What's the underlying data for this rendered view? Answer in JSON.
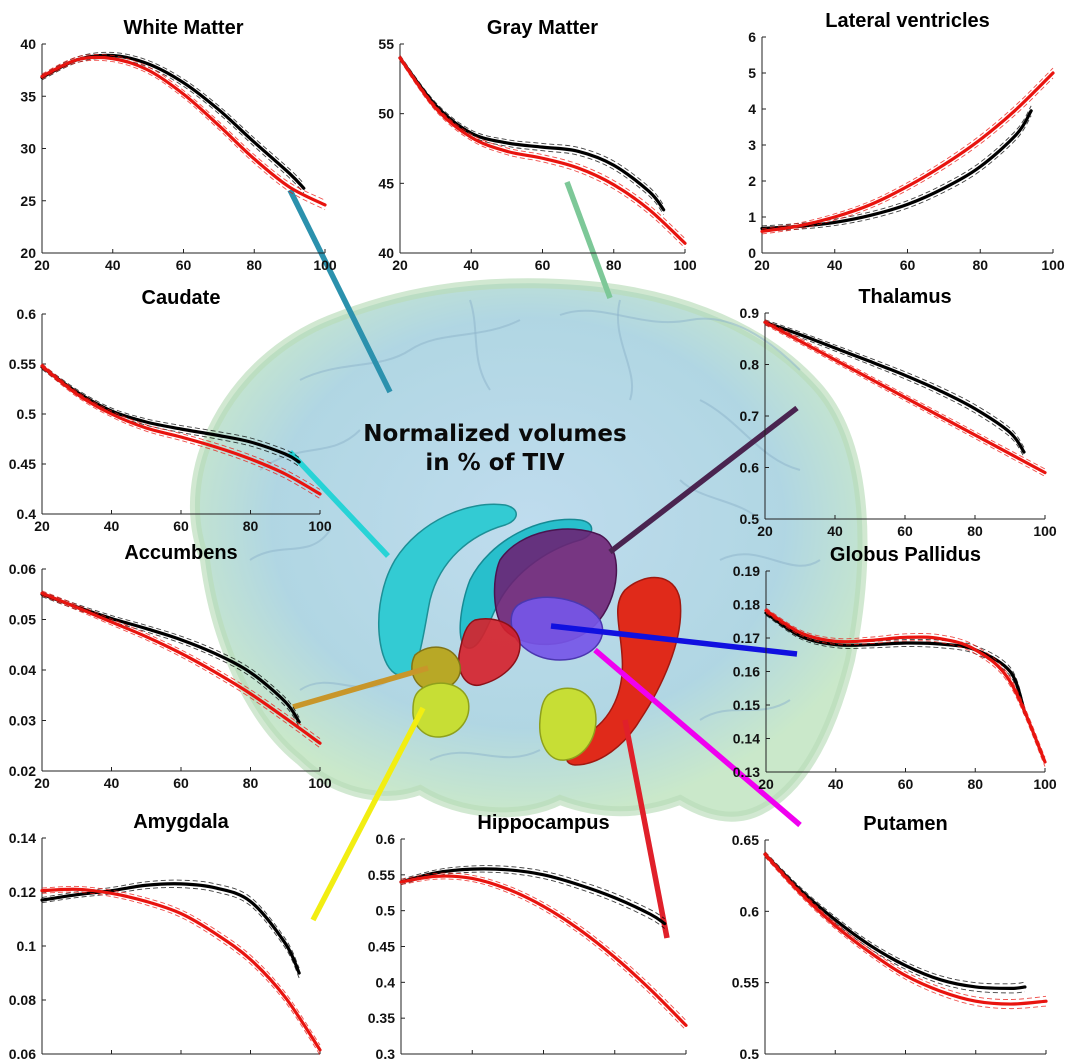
{
  "caption": {
    "line1": "Normalized volumes",
    "line2": "in % of TIV"
  },
  "colors": {
    "series_1": "#000000",
    "series_2": "#e8140f",
    "leader_white_matter": "#2b91ad",
    "leader_gray_matter": "#7dc898",
    "leader_caudate": "#27d3d6",
    "leader_thalamus": "#4a2450",
    "leader_accumbens": "#c8962a",
    "leader_globus_pallidus": "#1010e0",
    "leader_amygdala": "#f2ee12",
    "leader_hippocampus": "#e0202a",
    "leader_putamen": "#f000f0"
  },
  "chart_data": [
    {
      "type": "line",
      "title": "White Matter",
      "xlim": [
        20,
        100
      ],
      "ylim": [
        20,
        40
      ],
      "xticks": [
        "20",
        "40",
        "60",
        "80",
        "100"
      ],
      "yticks": [
        "20",
        "25",
        "30",
        "35",
        "40"
      ],
      "series": [
        {
          "x": [
            20,
            30,
            40,
            50,
            60,
            70,
            80,
            90,
            94
          ],
          "values": [
            36.8,
            38.5,
            38.9,
            38.1,
            36.3,
            33.7,
            30.6,
            27.6,
            26.2
          ]
        },
        {
          "x": [
            20,
            30,
            40,
            50,
            60,
            70,
            80,
            90,
            100
          ],
          "values": [
            36.9,
            38.5,
            38.6,
            37.5,
            35.2,
            32.2,
            29.0,
            26.3,
            24.6
          ]
        }
      ]
    },
    {
      "type": "line",
      "title": "Gray Matter",
      "xlim": [
        20,
        100
      ],
      "ylim": [
        40,
        55
      ],
      "xticks": [
        "20",
        "40",
        "60",
        "80",
        "100"
      ],
      "yticks": [
        "40",
        "45",
        "50",
        "55"
      ],
      "series": [
        {
          "x": [
            20,
            30,
            40,
            50,
            60,
            70,
            80,
            90,
            94
          ],
          "values": [
            54.0,
            50.6,
            48.6,
            47.9,
            47.6,
            47.3,
            46.3,
            44.4,
            43.1
          ]
        },
        {
          "x": [
            20,
            30,
            40,
            50,
            60,
            70,
            80,
            90,
            100
          ],
          "values": [
            54.0,
            50.4,
            48.3,
            47.3,
            46.8,
            46.1,
            44.9,
            43.1,
            40.7
          ]
        }
      ]
    },
    {
      "type": "line",
      "title": "Lateral ventricles",
      "xlim": [
        20,
        100
      ],
      "ylim": [
        0,
        6
      ],
      "xticks": [
        "20",
        "40",
        "60",
        "80",
        "100"
      ],
      "yticks": [
        "0",
        "1",
        "2",
        "3",
        "4",
        "5",
        "6"
      ],
      "series": [
        {
          "x": [
            20,
            30,
            40,
            50,
            60,
            70,
            80,
            90,
            94
          ],
          "values": [
            0.68,
            0.74,
            0.85,
            1.05,
            1.35,
            1.8,
            2.4,
            3.3,
            3.95
          ]
        },
        {
          "x": [
            20,
            30,
            40,
            50,
            60,
            70,
            80,
            90,
            100
          ],
          "values": [
            0.6,
            0.75,
            1.0,
            1.35,
            1.85,
            2.45,
            3.15,
            4.0,
            5.0
          ]
        }
      ]
    },
    {
      "type": "line",
      "title": "Caudate",
      "xlim": [
        20,
        100
      ],
      "ylim": [
        0.4,
        0.6
      ],
      "xticks": [
        "20",
        "40",
        "60",
        "80",
        "100"
      ],
      "yticks": [
        "0.4",
        "0.45",
        "0.5",
        "0.55",
        "0.6"
      ],
      "series": [
        {
          "x": [
            20,
            30,
            40,
            50,
            60,
            70,
            80,
            90,
            94
          ],
          "values": [
            0.547,
            0.522,
            0.503,
            0.492,
            0.485,
            0.479,
            0.472,
            0.46,
            0.452
          ]
        },
        {
          "x": [
            20,
            30,
            40,
            50,
            60,
            70,
            80,
            90,
            100
          ],
          "values": [
            0.548,
            0.52,
            0.5,
            0.486,
            0.477,
            0.467,
            0.455,
            0.44,
            0.42
          ]
        }
      ]
    },
    {
      "type": "line",
      "title": "Thalamus",
      "xlim": [
        20,
        100
      ],
      "ylim": [
        0.5,
        0.9
      ],
      "xticks": [
        "20",
        "40",
        "60",
        "80",
        "100"
      ],
      "yticks": [
        "0.5",
        "0.6",
        "0.7",
        "0.8",
        "0.9"
      ],
      "series": [
        {
          "x": [
            20,
            30,
            40,
            50,
            60,
            70,
            80,
            90,
            94
          ],
          "values": [
            0.882,
            0.858,
            0.832,
            0.806,
            0.779,
            0.749,
            0.714,
            0.668,
            0.63
          ]
        },
        {
          "x": [
            20,
            100
          ],
          "values": [
            0.882,
            0.59
          ]
        }
      ]
    },
    {
      "type": "line",
      "title": "Accumbens",
      "xlim": [
        20,
        100
      ],
      "ylim": [
        0.02,
        0.06
      ],
      "xticks": [
        "20",
        "40",
        "60",
        "80",
        "100"
      ],
      "yticks": [
        "0.02",
        "0.03",
        "0.04",
        "0.05",
        "0.06"
      ],
      "series": [
        {
          "x": [
            20,
            30,
            40,
            50,
            60,
            70,
            80,
            90,
            94
          ],
          "values": [
            0.055,
            0.0525,
            0.0502,
            0.0482,
            0.046,
            0.0432,
            0.0395,
            0.0337,
            0.0297
          ]
        },
        {
          "x": [
            20,
            30,
            40,
            50,
            60,
            70,
            80,
            90,
            100
          ],
          "values": [
            0.0552,
            0.0524,
            0.0495,
            0.0466,
            0.0433,
            0.0395,
            0.0353,
            0.0305,
            0.0255
          ]
        }
      ]
    },
    {
      "type": "line",
      "title": "Globus Pallidus",
      "xlim": [
        20,
        100
      ],
      "ylim": [
        0.13,
        0.19
      ],
      "xticks": [
        "20",
        "40",
        "60",
        "80",
        "100"
      ],
      "yticks": [
        "0.13",
        "0.14",
        "0.15",
        "0.16",
        "0.17",
        "0.18",
        "0.19"
      ],
      "series": [
        {
          "x": [
            20,
            30,
            40,
            50,
            60,
            70,
            80,
            90,
            94
          ],
          "values": [
            0.1775,
            0.1705,
            0.168,
            0.168,
            0.1685,
            0.1682,
            0.1665,
            0.16,
            0.1485
          ]
        },
        {
          "x": [
            20,
            30,
            40,
            50,
            60,
            70,
            80,
            90,
            100
          ],
          "values": [
            0.1782,
            0.1715,
            0.169,
            0.1693,
            0.1702,
            0.1698,
            0.1665,
            0.157,
            0.133
          ]
        }
      ]
    },
    {
      "type": "line",
      "title": "Amygdala",
      "xlim": [
        20,
        100
      ],
      "ylim": [
        0.06,
        0.14
      ],
      "xticks": [
        "20",
        "40",
        "60",
        "80",
        "100"
      ],
      "yticks": [
        "0.06",
        "0.08",
        "0.1",
        "0.12",
        "0.14"
      ],
      "series": [
        {
          "x": [
            20,
            30,
            40,
            50,
            60,
            70,
            80,
            90,
            94
          ],
          "values": [
            0.117,
            0.119,
            0.1205,
            0.1225,
            0.123,
            0.1215,
            0.1165,
            0.101,
            0.09
          ]
        },
        {
          "x": [
            20,
            30,
            40,
            50,
            60,
            70,
            80,
            90,
            100
          ],
          "values": [
            0.1205,
            0.121,
            0.1195,
            0.1165,
            0.112,
            0.1045,
            0.095,
            0.081,
            0.0615
          ]
        }
      ]
    },
    {
      "type": "line",
      "title": "Hippocampus",
      "xlim": [
        20,
        100
      ],
      "ylim": [
        0.3,
        0.6
      ],
      "xticks": [
        "20",
        "40",
        "60",
        "80",
        "100"
      ],
      "yticks": [
        "0.3",
        "0.35",
        "0.4",
        "0.45",
        "0.5",
        "0.55",
        "0.6"
      ],
      "series": [
        {
          "x": [
            20,
            30,
            40,
            50,
            60,
            70,
            80,
            90,
            94
          ],
          "values": [
            0.54,
            0.553,
            0.558,
            0.557,
            0.55,
            0.536,
            0.518,
            0.495,
            0.482
          ]
        },
        {
          "x": [
            20,
            30,
            40,
            50,
            60,
            70,
            80,
            90,
            100
          ],
          "values": [
            0.54,
            0.548,
            0.545,
            0.53,
            0.506,
            0.474,
            0.435,
            0.39,
            0.34
          ]
        }
      ]
    },
    {
      "type": "line",
      "title": "Putamen",
      "xlim": [
        20,
        100
      ],
      "ylim": [
        0.5,
        0.65
      ],
      "xticks": [
        "20",
        "40",
        "60",
        "80",
        "100"
      ],
      "yticks": [
        "0.5",
        "0.55",
        "0.6",
        "0.65"
      ],
      "series": [
        {
          "x": [
            20,
            30,
            40,
            50,
            60,
            70,
            80,
            90,
            94
          ],
          "values": [
            0.64,
            0.615,
            0.594,
            0.576,
            0.562,
            0.552,
            0.547,
            0.546,
            0.547
          ]
        },
        {
          "x": [
            20,
            30,
            40,
            50,
            60,
            70,
            80,
            90,
            100
          ],
          "values": [
            0.64,
            0.613,
            0.59,
            0.571,
            0.555,
            0.544,
            0.537,
            0.535,
            0.537
          ]
        }
      ]
    }
  ]
}
